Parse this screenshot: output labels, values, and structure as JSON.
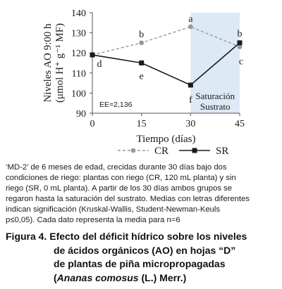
{
  "chart_data": {
    "type": "line",
    "x": [
      0,
      15,
      30,
      45
    ],
    "xticks": [
      "0",
      "15",
      "30",
      "45"
    ],
    "xlabel": "Tiempo (días)",
    "ylabel_line1": "Niveles AO 9:00 h",
    "ylabel_line2": "(μmol H⁺ g⁻¹ MF)",
    "ylim": [
      90,
      140
    ],
    "yticks": [
      "90",
      "100",
      "110",
      "120",
      "130",
      "140"
    ],
    "series": [
      {
        "name": "CR",
        "values": [
          119,
          125,
          133,
          123
        ],
        "style": "dashed",
        "marker": "circle",
        "color": "#999999",
        "letters": [
          "",
          "b",
          "a",
          "c"
        ]
      },
      {
        "name": "SR",
        "values": [
          119,
          115,
          104,
          125
        ],
        "style": "solid",
        "marker": "square",
        "color": "#1a1a1a",
        "letters": [
          "d",
          "e",
          "f",
          "b"
        ]
      }
    ],
    "shaded_region": {
      "x_from": 30,
      "x_to": 45,
      "label_line1": "Saturación",
      "label_line2": "Sustrato",
      "color": "#dde9f5"
    },
    "annotation": "EE=2,136",
    "legend_placement": "bottom",
    "grid": false
  },
  "note_lines": [
    "‘MD-2’ de 6 meses de edad, crecidas durante 30 días bajo dos",
    "condiciones de riego: plantas con riego (CR, 120 mL planta) y sin",
    "riego (SR, 0 mL planta). A partir de los 30 días ambos grupos se",
    "regaron hasta la saturación del sustrato. Medias con letras diferentes",
    "indican significación (Kruskal-Wallis, Student-Newman-Keuls",
    "p≤0,05). Cada dato representa la media para n=6"
  ],
  "caption": {
    "line1": "Figura 4. Efecto del déficit hídrico sobre los niveles",
    "line2": "de ácidos orgánicos (AO) en hojas “D”",
    "line3": "de plantas de piña micropropagadas",
    "line4_open": "(",
    "line4_italic": "Ananas comosus",
    "line4_rest": " (L.) Merr.)"
  }
}
